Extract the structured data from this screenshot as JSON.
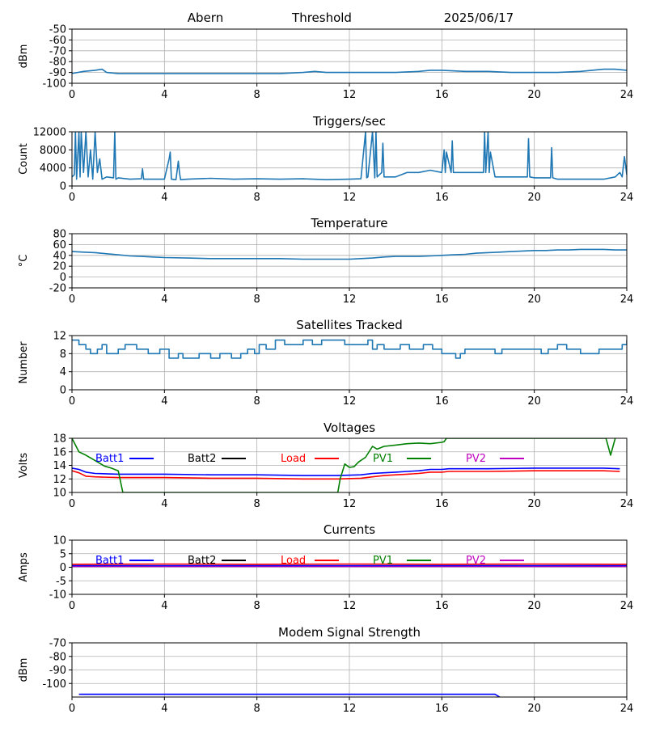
{
  "header": {
    "station": "Abern",
    "label": "Threshold",
    "date": "2025/06/17"
  },
  "colors": {
    "default": "#1f77b4",
    "batt1": "#0000ff",
    "batt2": "#000000",
    "load": "#ff0000",
    "pv1": "#008000",
    "pv2": "#bf00bf",
    "grid": "#b0b0b0"
  },
  "chart_data": [
    {
      "id": "threshold",
      "type": "line",
      "title": "",
      "ylabel": "dBm",
      "xlim": [
        0,
        24
      ],
      "ylim": [
        -100,
        -50
      ],
      "yticks": [
        "-50",
        "-60",
        "-70",
        "-80",
        "-90",
        "-100"
      ],
      "grid": true,
      "series": [
        {
          "color_key": "default",
          "x": [
            0,
            0.5,
            1,
            1.3,
            1.5,
            2,
            3,
            4,
            5,
            6,
            7,
            8,
            9,
            10,
            10.5,
            11,
            12,
            13,
            14,
            15,
            15.5,
            16,
            17,
            18,
            19,
            20,
            21,
            22,
            22.5,
            23,
            23.5,
            24
          ],
          "y": [
            -91,
            -89,
            -88,
            -87,
            -90,
            -91,
            -91,
            -91,
            -91,
            -91,
            -91,
            -91,
            -91,
            -90,
            -89,
            -90,
            -90,
            -90,
            -90,
            -89,
            -88,
            -88,
            -89,
            -89,
            -90,
            -90,
            -90,
            -89,
            -88,
            -87,
            -87,
            -88
          ]
        }
      ]
    },
    {
      "id": "triggers",
      "type": "line",
      "title": "Triggers/sec",
      "ylabel": "Count",
      "xlim": [
        0,
        24
      ],
      "ylim": [
        0,
        12000
      ],
      "yticks": [
        "12000",
        "8000",
        "4000",
        "0"
      ],
      "grid": true,
      "series": [
        {
          "color_key": "default",
          "x": [
            0,
            0.1,
            0.15,
            0.2,
            0.3,
            0.35,
            0.4,
            0.5,
            0.6,
            0.7,
            0.8,
            0.9,
            1.0,
            1.1,
            1.2,
            1.3,
            1.5,
            1.8,
            1.85,
            1.9,
            2.0,
            2.5,
            3.0,
            3.05,
            3.1,
            3.5,
            4.0,
            4.2,
            4.25,
            4.3,
            4.5,
            4.6,
            4.65,
            4.7,
            5,
            6,
            7,
            8,
            9,
            10,
            11,
            12,
            12.5,
            12.7,
            12.75,
            12.8,
            13.0,
            13.1,
            13.15,
            13.2,
            13.4,
            13.45,
            13.5,
            14,
            14.5,
            15,
            15.5,
            16.0,
            16.1,
            16.15,
            16.2,
            16.4,
            16.45,
            16.5,
            16.8,
            17.0,
            17.5,
            17.8,
            17.85,
            17.9,
            18.0,
            18.05,
            18.1,
            18.3,
            18.5,
            19,
            19.5,
            19.7,
            19.75,
            19.8,
            20,
            20.5,
            20.7,
            20.75,
            20.8,
            21,
            21.5,
            22,
            22.5,
            23,
            23.5,
            23.7,
            23.8,
            23.9,
            24
          ],
          "y": [
            2000,
            2500,
            12000,
            1500,
            12000,
            2000,
            12000,
            3000,
            12000,
            2000,
            8000,
            1500,
            12000,
            3000,
            6000,
            1500,
            2000,
            1800,
            12000,
            1500,
            1800,
            1500,
            1600,
            3800,
            1500,
            1500,
            1500,
            6000,
            7500,
            1500,
            1400,
            5500,
            3000,
            1400,
            1500,
            1700,
            1500,
            1600,
            1500,
            1600,
            1400,
            1500,
            1600,
            12000,
            1800,
            2000,
            12000,
            1800,
            12000,
            2000,
            3000,
            9500,
            2000,
            2000,
            3000,
            3000,
            3500,
            3000,
            8000,
            3000,
            7500,
            3000,
            10000,
            3000,
            3000,
            3000,
            3000,
            3000,
            12000,
            3000,
            12000,
            3000,
            7500,
            2000,
            2000,
            2000,
            2000,
            2000,
            10500,
            2000,
            1800,
            1800,
            1800,
            8500,
            1800,
            1500,
            1500,
            1500,
            1500,
            1500,
            2000,
            3000,
            2000,
            6500,
            2500
          ]
        }
      ]
    },
    {
      "id": "temperature",
      "type": "line",
      "title": "Temperature",
      "ylabel": "°C",
      "xlim": [
        0,
        24
      ],
      "ylim": [
        -20,
        80
      ],
      "yticks": [
        "80",
        "60",
        "40",
        "20",
        "0",
        "-20"
      ],
      "grid": true,
      "series": [
        {
          "color_key": "default",
          "x": [
            0,
            0.5,
            1,
            1.5,
            2,
            2.5,
            3,
            3.5,
            4,
            5,
            6,
            7,
            8,
            9,
            10,
            11,
            12,
            12.5,
            13,
            13.5,
            14,
            14.5,
            15,
            15.5,
            16,
            16.5,
            17,
            17.5,
            18,
            18.5,
            19,
            19.5,
            20,
            20.5,
            21,
            21.5,
            22,
            22.5,
            23,
            23.5,
            24
          ],
          "y": [
            47,
            46,
            45,
            43,
            41,
            39,
            38,
            37,
            36,
            35,
            34,
            34,
            34,
            34,
            33,
            33,
            33,
            34,
            35,
            37,
            38,
            38,
            38,
            39,
            40,
            41,
            42,
            44,
            45,
            46,
            47,
            48,
            49,
            49,
            50,
            50,
            51,
            51,
            51,
            50,
            50
          ]
        }
      ]
    },
    {
      "id": "satellites",
      "type": "line",
      "title": "Satellites Tracked",
      "ylabel": "Number",
      "xlim": [
        0,
        24
      ],
      "ylim": [
        0,
        12
      ],
      "yticks": [
        "12",
        "8",
        "4",
        "0"
      ],
      "grid": true,
      "series": [
        {
          "color_key": "default",
          "step": true,
          "x": [
            0,
            0.3,
            0.6,
            0.8,
            1.1,
            1.3,
            1.5,
            2.0,
            2.3,
            2.8,
            3.3,
            3.8,
            4.2,
            4.6,
            4.8,
            5.5,
            6.0,
            6.4,
            6.9,
            7.3,
            7.6,
            7.9,
            8.1,
            8.4,
            8.8,
            9.2,
            10.0,
            10.4,
            10.8,
            11.0,
            11.8,
            12.4,
            12.8,
            13.0,
            13.2,
            13.5,
            13.8,
            14.2,
            14.6,
            15.0,
            15.2,
            15.6,
            16.0,
            16.3,
            16.6,
            16.8,
            17.0,
            17.5,
            17.9,
            18.3,
            18.6,
            19.0,
            19.5,
            20.0,
            20.3,
            20.6,
            21.0,
            21.4,
            22.0,
            22.5,
            22.8,
            23.2,
            23.5,
            23.8,
            24
          ],
          "y": [
            11,
            10,
            9,
            8,
            9,
            10,
            8,
            9,
            10,
            9,
            8,
            9,
            7,
            8,
            7,
            8,
            7,
            8,
            7,
            8,
            9,
            8,
            10,
            9,
            11,
            10,
            11,
            10,
            11,
            11,
            10,
            10,
            11,
            9,
            10,
            9,
            9,
            10,
            9,
            9,
            10,
            9,
            8,
            8,
            7,
            8,
            9,
            9,
            9,
            8,
            9,
            9,
            9,
            9,
            8,
            9,
            10,
            9,
            8,
            8,
            9,
            9,
            9,
            10,
            11
          ]
        }
      ]
    },
    {
      "id": "voltages",
      "type": "line",
      "title": "Voltages",
      "ylabel": "Volts",
      "xlim": [
        0,
        24
      ],
      "ylim": [
        10,
        18
      ],
      "yticks": [
        "18",
        "16",
        "14",
        "12",
        "10"
      ],
      "grid": true,
      "legend": [
        {
          "label": "Batt1",
          "color_key": "batt1"
        },
        {
          "label": "Batt2",
          "color_key": "batt2"
        },
        {
          "label": "Load",
          "color_key": "load"
        },
        {
          "label": "PV1",
          "color_key": "pv1"
        },
        {
          "label": "PV2",
          "color_key": "pv2"
        }
      ],
      "series": [
        {
          "color_key": "batt1",
          "x": [
            0,
            0.3,
            0.6,
            1,
            2,
            4,
            6,
            8,
            10,
            11.5,
            12.5,
            13,
            13.5,
            14,
            14.5,
            15,
            15.5,
            16,
            16.3,
            17,
            18,
            20,
            22,
            23,
            23.7
          ],
          "y": [
            13.6,
            13.4,
            13.0,
            12.8,
            12.7,
            12.7,
            12.6,
            12.6,
            12.5,
            12.5,
            12.6,
            12.8,
            12.9,
            13.0,
            13.1,
            13.2,
            13.4,
            13.4,
            13.5,
            13.5,
            13.5,
            13.6,
            13.6,
            13.6,
            13.5
          ]
        },
        {
          "color_key": "load",
          "x": [
            0,
            0.3,
            0.6,
            1,
            2,
            4,
            6,
            8,
            10,
            11.5,
            12.5,
            13,
            13.5,
            14,
            14.5,
            15,
            15.5,
            16,
            16.3,
            17,
            18,
            20,
            22,
            23,
            23.7
          ],
          "y": [
            13.2,
            12.9,
            12.4,
            12.3,
            12.2,
            12.2,
            12.1,
            12.1,
            12.0,
            12.0,
            12.1,
            12.3,
            12.5,
            12.6,
            12.7,
            12.8,
            13.0,
            13.0,
            13.1,
            13.1,
            13.1,
            13.2,
            13.2,
            13.2,
            13.1
          ]
        },
        {
          "color_key": "pv1",
          "x": [
            0,
            0.3,
            0.6,
            1,
            1.4,
            1.7,
            2.0,
            2.2,
            11.5,
            11.6,
            11.8,
            12.0,
            12.2,
            12.4,
            12.7,
            13.0,
            13.2,
            13.5,
            14.0,
            14.5,
            15.0,
            15.5,
            16.0,
            16.1,
            16.2,
            23.1,
            23.3,
            23.5
          ],
          "y": [
            18,
            16.0,
            15.5,
            14.7,
            13.9,
            13.6,
            13.2,
            10,
            10,
            12.0,
            14.2,
            13.7,
            13.8,
            14.5,
            15.2,
            16.8,
            16.4,
            16.8,
            17.0,
            17.2,
            17.3,
            17.2,
            17.4,
            17.5,
            18,
            18,
            15.5,
            18
          ]
        }
      ]
    },
    {
      "id": "currents",
      "type": "line",
      "title": "Currents",
      "ylabel": "Amps",
      "xlim": [
        0,
        24
      ],
      "ylim": [
        -10,
        10
      ],
      "yticks": [
        "10",
        "5",
        "0",
        "-5",
        "-10"
      ],
      "grid": true,
      "legend": [
        {
          "label": "Batt1",
          "color_key": "batt1"
        },
        {
          "label": "Batt2",
          "color_key": "batt2"
        },
        {
          "label": "Load",
          "color_key": "load"
        },
        {
          "label": "PV1",
          "color_key": "pv1"
        },
        {
          "label": "PV2",
          "color_key": "pv2"
        }
      ],
      "series": [
        {
          "color_key": "pv2",
          "x": [
            0,
            24
          ],
          "y": [
            0.3,
            0.3
          ]
        },
        {
          "color_key": "batt1",
          "x": [
            0,
            24
          ],
          "y": [
            0.6,
            0.6
          ]
        },
        {
          "color_key": "load",
          "x": [
            0,
            4,
            8,
            12,
            16,
            20,
            24
          ],
          "y": [
            1.1,
            1.2,
            1.1,
            1.2,
            1.1,
            1.2,
            1.1
          ]
        }
      ]
    },
    {
      "id": "modem",
      "type": "line",
      "title": "Modem Signal Strength",
      "ylabel": "dBm",
      "xlim": [
        0,
        24
      ],
      "ylim": [
        -110,
        -70
      ],
      "yticks": [
        "-70",
        "-80",
        "-90",
        "-100"
      ],
      "grid": true,
      "series": [
        {
          "color_key": "batt1",
          "x": [
            0.3,
            18.3,
            18.5
          ],
          "y": [
            -108,
            -108,
            -110
          ]
        }
      ]
    }
  ],
  "xticks": [
    "0",
    "4",
    "8",
    "12",
    "16",
    "20",
    "24"
  ]
}
